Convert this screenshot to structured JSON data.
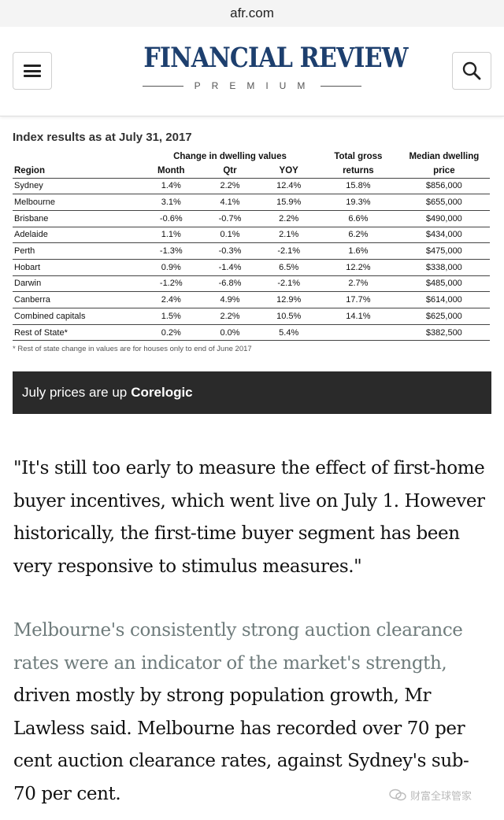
{
  "browser": {
    "url": "afr.com"
  },
  "header": {
    "menu_icon": "hamburger-icon",
    "search_icon": "search-icon",
    "masthead_title": "FINANCIAL REVIEW",
    "masthead_sub": "PREMIUM"
  },
  "figure": {
    "title": "Index results as at July 31, 2017",
    "group_header": "Change in dwelling values",
    "columns": {
      "region": "Region",
      "month": "Month",
      "qtr": "Qtr",
      "yoy": "YOY",
      "total_gross_1": "Total gross",
      "total_gross_2": "returns",
      "median_1": "Median dwelling",
      "median_2": "price"
    },
    "rows": [
      {
        "region": "Sydney",
        "month": "1.4%",
        "qtr": "2.2%",
        "yoy": "12.4%",
        "total": "15.8%",
        "median": "$856,000"
      },
      {
        "region": "Melbourne",
        "month": "3.1%",
        "qtr": "4.1%",
        "yoy": "15.9%",
        "total": "19.3%",
        "median": "$655,000"
      },
      {
        "region": "Brisbane",
        "month": "-0.6%",
        "qtr": "-0.7%",
        "yoy": "2.2%",
        "total": "6.6%",
        "median": "$490,000"
      },
      {
        "region": "Adelaide",
        "month": "1.1%",
        "qtr": "0.1%",
        "yoy": "2.1%",
        "total": "6.2%",
        "median": "$434,000"
      },
      {
        "region": "Perth",
        "month": "-1.3%",
        "qtr": "-0.3%",
        "yoy": "-2.1%",
        "total": "1.6%",
        "median": "$475,000"
      },
      {
        "region": "Hobart",
        "month": "0.9%",
        "qtr": "-1.4%",
        "yoy": "6.5%",
        "total": "12.2%",
        "median": "$338,000"
      },
      {
        "region": "Darwin",
        "month": "-1.2%",
        "qtr": "-6.8%",
        "yoy": "-2.1%",
        "total": "2.7%",
        "median": "$485,000"
      },
      {
        "region": "Canberra",
        "month": "2.4%",
        "qtr": "4.9%",
        "yoy": "12.9%",
        "total": "17.7%",
        "median": "$614,000"
      },
      {
        "region": "Combined capitals",
        "month": "1.5%",
        "qtr": "2.2%",
        "yoy": "10.5%",
        "total": "14.1%",
        "median": "$625,000"
      },
      {
        "region": "Rest of State*",
        "month": "0.2%",
        "qtr": "0.0%",
        "yoy": "5.4%",
        "total": "",
        "median": "$382,500"
      }
    ],
    "footnote": "* Rest of state change in values are for houses only to end of June 2017",
    "caption": "July prices are up",
    "credit": "Corelogic"
  },
  "article": {
    "quote": "\"It's still too early to measure the effect of first-home buyer incentives, which went live on July 1. However historically, the first-time buyer segment has been very responsive to stimulus measures.\"",
    "para_gray": "Melbourne's consistently strong auction clearance rates were an indicator of the market's strength,",
    "para_rest": " driven mostly by strong population growth, Mr Lawless said. Melbourne has recorded over 70 per cent auction clearance rates, against Sydney's sub-70 per cent."
  },
  "watermark": {
    "text": "财富全球管家"
  }
}
